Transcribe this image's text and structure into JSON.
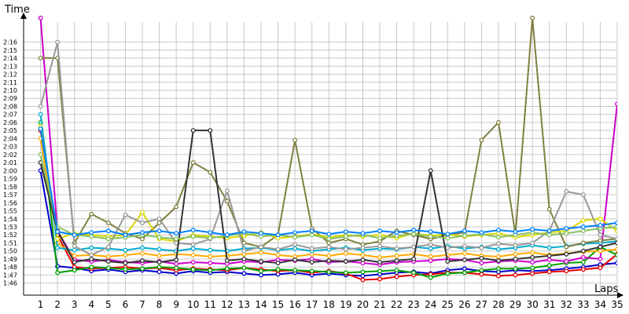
{
  "chart_data": {
    "type": "line",
    "xlabel": "Laps",
    "ylabel": "Time",
    "x": [
      1,
      2,
      3,
      4,
      5,
      6,
      7,
      8,
      9,
      10,
      11,
      12,
      13,
      14,
      15,
      16,
      17,
      18,
      19,
      20,
      21,
      22,
      23,
      24,
      25,
      26,
      27,
      28,
      29,
      30,
      31,
      32,
      33,
      34,
      35
    ],
    "xlim": [
      0,
      35
    ],
    "ylim": [
      104.5,
      138.5
    ],
    "y_tick_labels": [
      "1:46",
      "1:47",
      "1:48",
      "1:49",
      "1:50",
      "1:51",
      "1:52",
      "1:53",
      "1:54",
      "1:55",
      "1:56",
      "1:57",
      "1:58",
      "1:59",
      "2:00",
      "2:01",
      "2:02",
      "2:03",
      "2:04",
      "2:05",
      "2:06",
      "2:07",
      "2:08",
      "2:09",
      "2:10",
      "2:11",
      "2:12",
      "2:13",
      "2:14",
      "2:15",
      "2:16"
    ],
    "grid": true,
    "series": [
      {
        "color": "#0000cc",
        "values": [
          120.0,
          108.1,
          107.9,
          107.5,
          107.7,
          107.4,
          107.6,
          107.4,
          107.2,
          107.5,
          107.3,
          107.4,
          107.2,
          107.0,
          107.1,
          107.3,
          107.0,
          107.2,
          107.0,
          106.9,
          107.1,
          107.3,
          107.4,
          107.2,
          107.6,
          107.8,
          107.5,
          107.4,
          107.6,
          107.5,
          107.6,
          107.8,
          108.0,
          108.3,
          108.5
        ]
      },
      {
        "color": "#e60000",
        "values": [
          125.0,
          112.0,
          108.0,
          107.8,
          107.9,
          108.0,
          107.8,
          107.9,
          107.6,
          107.8,
          107.7,
          107.6,
          107.9,
          107.7,
          107.5,
          107.6,
          107.3,
          107.5,
          107.2,
          106.4,
          106.5,
          106.8,
          107.0,
          107.1,
          107.3,
          107.3,
          107.1,
          106.9,
          107.0,
          107.2,
          107.4,
          107.5,
          107.7,
          107.9,
          109.6
        ]
      },
      {
        "color": "#00a000",
        "values": [
          126.0,
          107.3,
          107.6,
          108.0,
          107.9,
          107.7,
          107.8,
          108.0,
          107.9,
          107.7,
          107.6,
          107.8,
          107.9,
          107.5,
          107.7,
          107.6,
          107.5,
          107.4,
          107.3,
          107.4,
          107.5,
          107.6,
          107.3,
          106.7,
          107.2,
          107.3,
          107.6,
          107.8,
          107.8,
          107.9,
          108.2,
          108.5,
          108.6,
          110.5,
          109.5
        ]
      },
      {
        "color": "#cc00cc",
        "values": [
          139.0,
          112.5,
          108.9,
          108.7,
          108.9,
          108.6,
          108.5,
          108.7,
          108.4,
          108.6,
          108.5,
          108.4,
          108.7,
          108.6,
          108.9,
          108.8,
          109.0,
          108.6,
          108.7,
          108.5,
          108.3,
          108.6,
          108.7,
          108.8,
          109.0,
          108.9,
          108.5,
          108.7,
          108.8,
          108.6,
          108.9,
          108.7,
          109.2,
          109.0,
          128.3
        ]
      },
      {
        "color": "#ffaa00",
        "values": [
          124.0,
          111.0,
          109.4,
          109.5,
          109.3,
          109.5,
          109.7,
          109.4,
          109.6,
          109.5,
          109.3,
          109.4,
          109.6,
          109.8,
          109.5,
          109.3,
          109.6,
          109.4,
          109.7,
          109.5,
          109.2,
          109.4,
          109.6,
          109.3,
          109.5,
          109.7,
          109.4,
          109.3,
          109.6,
          109.8,
          109.5,
          109.7,
          109.9,
          110.0,
          110.2
        ]
      },
      {
        "color": "#00aacc",
        "values": [
          127.0,
          110.4,
          110.1,
          110.4,
          110.3,
          110.1,
          110.4,
          110.2,
          110.0,
          110.3,
          110.1,
          110.0,
          110.3,
          110.4,
          110.1,
          110.3,
          110.0,
          110.2,
          110.4,
          110.1,
          110.3,
          110.2,
          110.5,
          110.3,
          110.6,
          110.3,
          110.5,
          110.2,
          110.4,
          110.7,
          110.4,
          110.6,
          110.9,
          111.0,
          111.2
        ]
      },
      {
        "color": "#808040",
        "values": [
          134.0,
          134.0,
          111.0,
          114.6,
          113.5,
          112.2,
          111.5,
          113.5,
          115.5,
          121.0,
          119.8,
          116.2,
          111.0,
          110.5,
          112.0,
          123.8,
          112.8,
          111.0,
          111.5,
          110.8,
          111.2,
          112.5,
          112.0,
          111.5,
          112.0,
          112.3,
          123.8,
          126.0,
          112.0,
          139.0,
          115.2,
          110.5,
          111.0,
          111.3,
          111.5
        ]
      },
      {
        "color": "#d8d800",
        "values": [
          125.5,
          111.5,
          112.2,
          112.0,
          111.8,
          112.0,
          114.8,
          111.5,
          111.2,
          112.0,
          111.8,
          111.6,
          111.9,
          112.3,
          111.6,
          111.8,
          112.1,
          111.7,
          112.0,
          111.8,
          112.0,
          111.6,
          112.2,
          111.9,
          112.1,
          111.8,
          112.0,
          112.2,
          111.7,
          112.0,
          112.3,
          112.5,
          113.8,
          114.0,
          112.5
        ]
      },
      {
        "color": "#999999",
        "values": [
          128.0,
          136.0,
          110.6,
          109.5,
          110.5,
          114.5,
          113.5,
          114.0,
          111.0,
          110.8,
          111.5,
          117.5,
          110.0,
          110.5,
          110.2,
          110.8,
          110.3,
          110.5,
          110.2,
          110.4,
          110.6,
          110.3,
          110.5,
          110.8,
          110.4,
          110.6,
          110.4,
          110.9,
          110.7,
          111.0,
          112.5,
          117.4,
          117.0,
          112.0,
          111.5
        ]
      },
      {
        "color": "#333333",
        "values": [
          121.0,
          112.5,
          108.6,
          109.0,
          108.7,
          108.5,
          108.8,
          108.6,
          108.9,
          125.0,
          125.0,
          108.8,
          109.0,
          108.7,
          108.5,
          108.9,
          108.6,
          108.8,
          108.7,
          108.9,
          108.6,
          108.8,
          109.0,
          120.0,
          108.7,
          108.9,
          109.1,
          108.8,
          109.0,
          109.2,
          109.4,
          109.6,
          110.0,
          110.5,
          111.0
        ]
      },
      {
        "color": "#88c060",
        "values": [
          122.0,
          113.0,
          112.0,
          111.8,
          111.5,
          111.7,
          112.0,
          111.7,
          111.5,
          111.8,
          111.6,
          111.9,
          112.2,
          111.8,
          112.0,
          111.7,
          112.0,
          111.5,
          111.8,
          112.0,
          111.6,
          111.9,
          112.1,
          111.8,
          111.6,
          111.9,
          112.1,
          111.7,
          112.0,
          112.3,
          112.0,
          112.2,
          112.5,
          112.8,
          113.0
        ]
      },
      {
        "color": "#0080ff",
        "values": [
          125.2,
          112.4,
          112.0,
          112.3,
          112.5,
          112.0,
          112.3,
          112.5,
          112.2,
          112.6,
          112.3,
          112.0,
          112.4,
          112.2,
          112.0,
          112.3,
          112.5,
          112.1,
          112.4,
          112.2,
          112.5,
          112.3,
          112.6,
          112.4,
          112.1,
          112.5,
          112.3,
          112.6,
          112.4,
          112.7,
          112.5,
          112.8,
          113.0,
          113.2,
          113.5
        ]
      }
    ]
  }
}
